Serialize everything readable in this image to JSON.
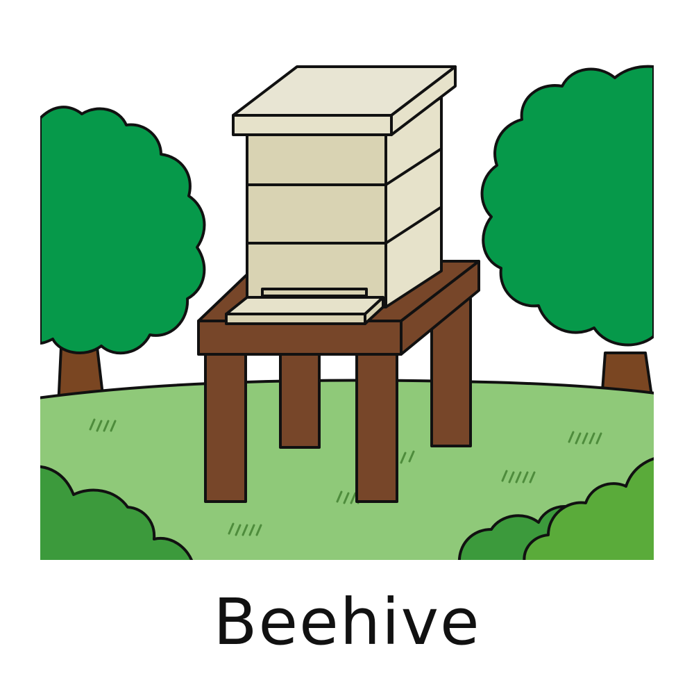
{
  "caption": {
    "text": "Beehive"
  },
  "illustration": {
    "subject": "beehive-on-stand",
    "colors": {
      "outline": "#111111",
      "sky": "#ffffff",
      "grass": "#8fc979",
      "grass_strokes": "#4e8c3c",
      "tree_foliage": "#06994a",
      "tree_trunk": "#7a4622",
      "bush_dark": "#3c9a3c",
      "bush_light": "#5aab3a",
      "hive_front": "#d9d3b3",
      "hive_side": "#e6e2ca",
      "hive_roof": "#e8e5d3",
      "stand_wood": "#774629"
    }
  }
}
